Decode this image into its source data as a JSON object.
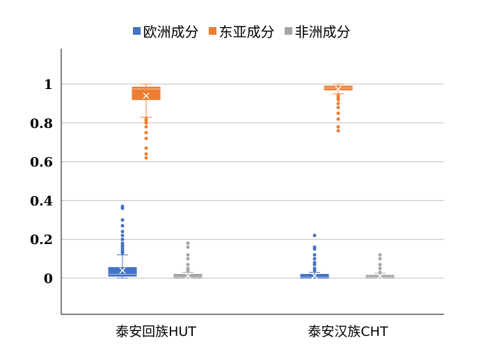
{
  "chart_data": {
    "type": "box",
    "categories": [
      "泰安回族HUT",
      "泰安汉族CHT"
    ],
    "ylim": [
      -0.18,
      1.18
    ],
    "yticks": [
      "0",
      "0.2",
      "0.4",
      "0.6",
      "0.8",
      "1"
    ],
    "yticks_values": [
      0,
      0.2,
      0.4,
      0.6,
      0.8,
      1
    ],
    "grid": true,
    "legend_position": "top",
    "series": [
      {
        "name": "欧洲成分",
        "color": "#4472C4",
        "boxes": [
          {
            "min": 0.0,
            "q1": 0.01,
            "median": 0.02,
            "q3": 0.055,
            "max": 0.12,
            "mean": 0.04,
            "outliers": [
              0.37,
              0.36,
              0.3,
              0.27,
              0.24,
              0.22,
              0.2,
              0.18,
              0.17,
              0.16,
              0.15,
              0.14,
              0.13
            ]
          },
          {
            "min": 0.0,
            "q1": 0.0,
            "median": 0.005,
            "q3": 0.02,
            "max": 0.03,
            "mean": 0.012,
            "outliers": [
              0.22,
              0.16,
              0.15,
              0.12,
              0.1,
              0.08,
              0.07,
              0.05,
              0.04
            ]
          }
        ]
      },
      {
        "name": "东亚成分",
        "color": "#ED7D31",
        "boxes": [
          {
            "min": 0.83,
            "q1": 0.92,
            "median": 0.975,
            "q3": 0.985,
            "max": 1.0,
            "mean": 0.94,
            "outliers": [
              0.82,
              0.81,
              0.8,
              0.78,
              0.75,
              0.72,
              0.67,
              0.64,
              0.62
            ]
          },
          {
            "min": 0.95,
            "q1": 0.97,
            "median": 0.98,
            "q3": 0.99,
            "max": 1.0,
            "mean": 0.975,
            "outliers": [
              0.94,
              0.93,
              0.92,
              0.9,
              0.88,
              0.85,
              0.82,
              0.78,
              0.76
            ]
          }
        ]
      },
      {
        "name": "非洲成分",
        "color": "#A5A5A5",
        "boxes": [
          {
            "min": 0.0,
            "q1": 0.0,
            "median": 0.005,
            "q3": 0.02,
            "max": 0.03,
            "mean": 0.012,
            "outliers": [
              0.18,
              0.16,
              0.12,
              0.1,
              0.07,
              0.05,
              0.04
            ]
          },
          {
            "min": 0.0,
            "q1": 0.0,
            "median": 0.005,
            "q3": 0.015,
            "max": 0.025,
            "mean": 0.01,
            "outliers": [
              0.12,
              0.1,
              0.07,
              0.05,
              0.03
            ]
          }
        ]
      }
    ]
  }
}
